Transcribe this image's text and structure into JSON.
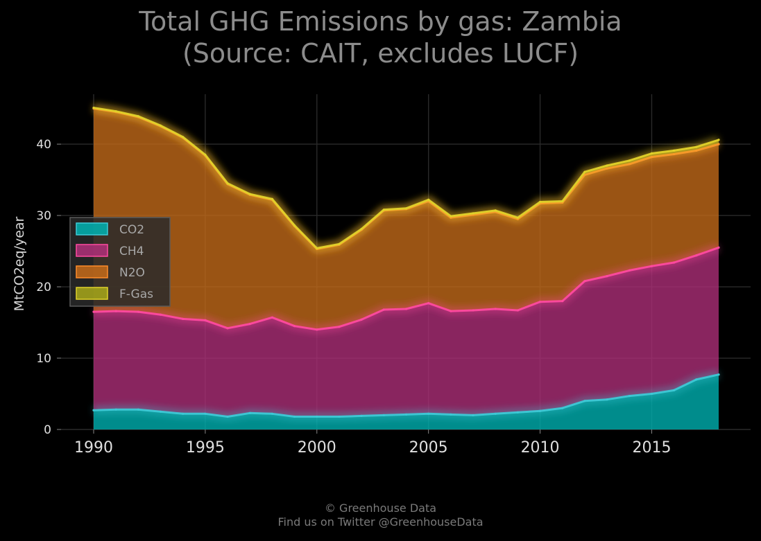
{
  "chart_data": {
    "type": "area",
    "stacked": true,
    "title_lines": [
      "Total GHG Emissions by gas: Zambia",
      "(Source: CAIT, excludes LUCF)"
    ],
    "ylabel": "MtCO2eq/year",
    "xlabel": "",
    "xlim": [
      1990,
      2018
    ],
    "ylim": [
      0,
      47
    ],
    "xticks": [
      1990,
      1995,
      2000,
      2005,
      2010,
      2015
    ],
    "yticks": [
      0,
      10,
      20,
      30,
      40
    ],
    "grid": true,
    "legend_position": "center-left",
    "x": [
      1990,
      1991,
      1992,
      1993,
      1994,
      1995,
      1996,
      1997,
      1998,
      1999,
      2000,
      2001,
      2002,
      2003,
      2004,
      2005,
      2006,
      2007,
      2008,
      2009,
      2010,
      2011,
      2012,
      2013,
      2014,
      2015,
      2016,
      2017,
      2018
    ],
    "series": [
      {
        "name": "CO2",
        "color": "#00b3b3",
        "line_color": "#3ec9d6",
        "values": [
          2.7,
          2.8,
          2.8,
          2.5,
          2.2,
          2.2,
          1.8,
          2.3,
          2.2,
          1.8,
          1.8,
          1.8,
          1.9,
          2.0,
          2.1,
          2.2,
          2.1,
          2.0,
          2.2,
          2.4,
          2.6,
          3.0,
          4.0,
          4.2,
          4.7,
          5.0,
          5.5,
          7.0,
          7.7
        ]
      },
      {
        "name": "CH4",
        "color": "#b0307a",
        "line_color": "#ff4aa0",
        "values": [
          13.8,
          13.8,
          13.7,
          13.6,
          13.3,
          13.1,
          12.4,
          12.5,
          13.5,
          12.7,
          12.2,
          12.6,
          13.5,
          14.8,
          14.8,
          15.5,
          14.5,
          14.7,
          14.7,
          14.3,
          15.3,
          15.0,
          16.8,
          17.3,
          17.6,
          17.9,
          17.9,
          17.4,
          17.8
        ]
      },
      {
        "name": "N2O",
        "color": "#c56b1a",
        "line_color": "#ff8c2a",
        "values": [
          28.5,
          27.9,
          27.3,
          26.4,
          25.4,
          23.1,
          20.2,
          18.1,
          16.5,
          14.0,
          11.3,
          11.5,
          12.6,
          13.9,
          14.0,
          14.3,
          13.1,
          13.4,
          13.6,
          12.8,
          13.8,
          13.8,
          14.9,
          15.1,
          14.9,
          15.3,
          15.2,
          14.7,
          14.5
        ]
      },
      {
        "name": "F-Gas",
        "color": "#a8a81a",
        "line_color": "#e0d22a",
        "values": [
          0.1,
          0.1,
          0.1,
          0.1,
          0.1,
          0.1,
          0.1,
          0.1,
          0.1,
          0.1,
          0.1,
          0.1,
          0.1,
          0.1,
          0.1,
          0.2,
          0.2,
          0.2,
          0.2,
          0.2,
          0.2,
          0.2,
          0.4,
          0.4,
          0.5,
          0.5,
          0.5,
          0.5,
          0.6
        ]
      }
    ]
  },
  "footer": {
    "line1": "© Greenhouse Data",
    "line2": "Find us on Twitter @GreenhouseData"
  }
}
